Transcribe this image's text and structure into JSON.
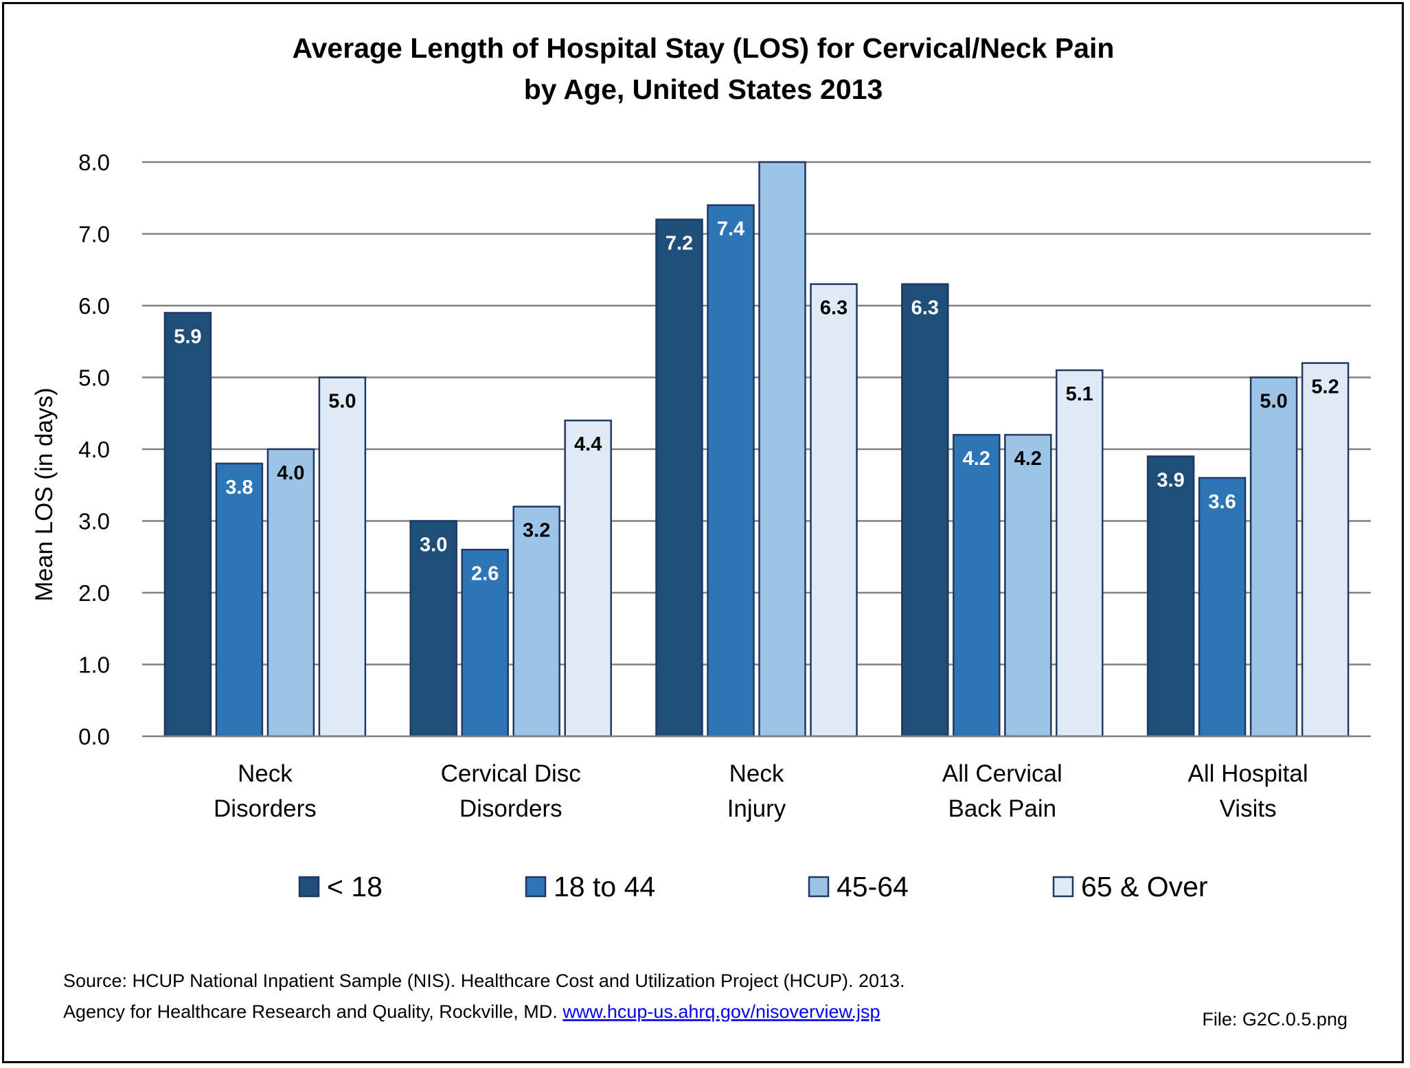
{
  "chart_data": {
    "type": "bar",
    "title": [
      "Average Length of Hospital Stay (LOS) for Cervical/Neck Pain",
      "by Age, United States 2013"
    ],
    "ylabel": "Mean LOS (in days)",
    "ylim": [
      0,
      8
    ],
    "yticks": [
      "0.0",
      "1.0",
      "2.0",
      "3.0",
      "4.0",
      "5.0",
      "6.0",
      "7.0",
      "8.0"
    ],
    "grid": true,
    "legend_position": "bottom",
    "categories": [
      [
        "Neck",
        "Disorders"
      ],
      [
        "Cervical Disc",
        "Disorders"
      ],
      [
        "Neck",
        "Injury"
      ],
      [
        "All Cervical",
        "Back Pain"
      ],
      [
        "All Hospital",
        "Visits"
      ]
    ],
    "series": [
      {
        "name": "< 18",
        "color": "#1f4e79",
        "label_color": "#ffffff",
        "values": [
          5.9,
          3.0,
          7.2,
          6.3,
          3.9
        ],
        "labels": [
          "5.9",
          "3.0",
          "7.2",
          "6.3",
          "3.9"
        ]
      },
      {
        "name": "18 to 44",
        "color": "#2e75b6",
        "label_color": "#ffffff",
        "values": [
          3.8,
          2.6,
          7.4,
          4.2,
          3.6
        ],
        "labels": [
          "3.8",
          "2.6",
          "7.4",
          "4.2",
          "3.6"
        ]
      },
      {
        "name": "45-64",
        "color": "#9dc3e6",
        "label_color": "#000000",
        "values": [
          4.0,
          3.2,
          8.0,
          4.2,
          5.0
        ],
        "labels": [
          "4.0",
          "3.2",
          "",
          "4.2",
          "5.0"
        ]
      },
      {
        "name": "65 & Over",
        "color": "#deebf7",
        "label_color": "#000000",
        "values": [
          5.0,
          4.4,
          6.3,
          5.1,
          5.2
        ],
        "labels": [
          "5.0",
          "4.4",
          "6.3",
          "5.1",
          "5.2"
        ]
      }
    ]
  },
  "source": {
    "line1": "Source: HCUP National Inpatient Sample (NIS). Healthcare Cost and Utilization Project (HCUP). 2013.",
    "line2_prefix": "Agency for Healthcare Research and Quality, Rockville, MD. ",
    "link_text": "www.hcup-us.ahrq.gov/nisoverview.jsp",
    "file_label": "File: G2C.0.5.png"
  }
}
